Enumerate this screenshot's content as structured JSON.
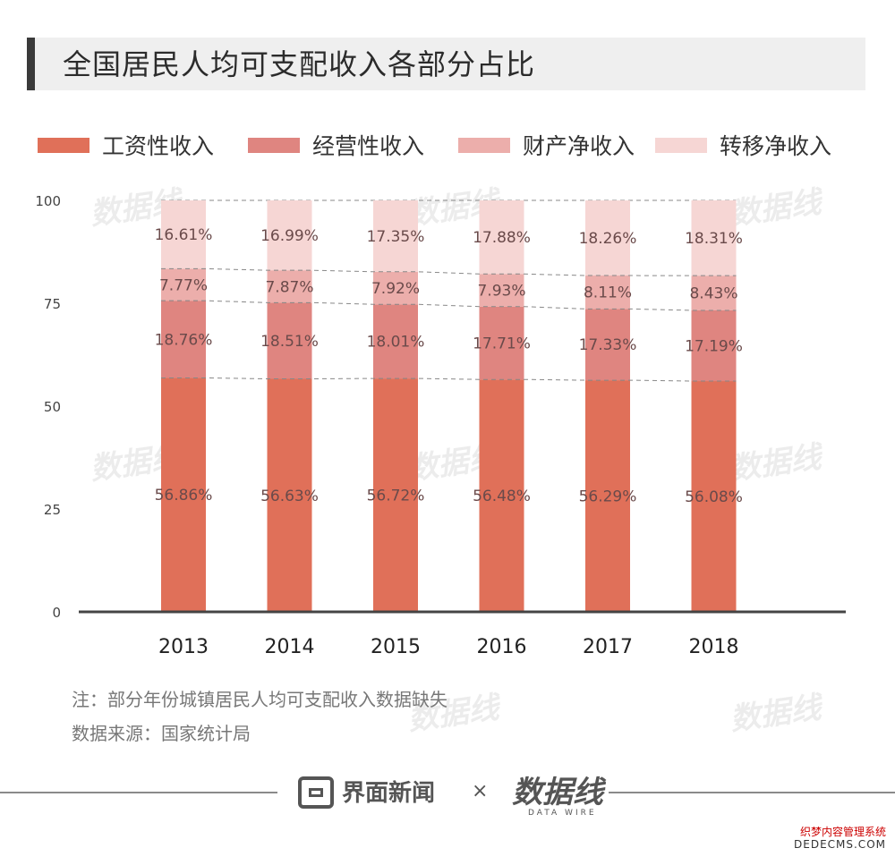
{
  "title": "全国居民人均可支配收入各部分占比",
  "legend": [
    {
      "label": "工资性收入",
      "color": "#e07059"
    },
    {
      "label": "经营性收入",
      "color": "#df8580"
    },
    {
      "label": "财产净收入",
      "color": "#ecaeab"
    },
    {
      "label": "转移净收入",
      "color": "#f6d6d4"
    }
  ],
  "chart_data": {
    "type": "bar",
    "stacked": true,
    "title": "全国居民人均可支配收入各部分占比",
    "categories": [
      "2013",
      "2014",
      "2015",
      "2016",
      "2017",
      "2018"
    ],
    "series": [
      {
        "name": "工资性收入",
        "values": [
          56.86,
          56.63,
          56.72,
          56.48,
          56.29,
          56.08
        ],
        "labels": [
          "56.86%",
          "56.63%",
          "56.72%",
          "56.48%",
          "56.29%",
          "56.08%"
        ]
      },
      {
        "name": "经营性收入",
        "values": [
          18.76,
          18.51,
          18.01,
          17.71,
          17.33,
          17.19
        ],
        "labels": [
          "18.76%",
          "18.51%",
          "18.01%",
          "17.71%",
          "17.33%",
          "17.19%"
        ]
      },
      {
        "name": "财产净收入",
        "values": [
          7.77,
          7.87,
          7.92,
          7.93,
          8.11,
          8.43
        ],
        "labels": [
          "7.77%",
          "7.87%",
          "7.92%",
          "7.93%",
          "8.11%",
          "8.43%"
        ]
      },
      {
        "name": "转移净收入",
        "values": [
          16.61,
          16.99,
          17.35,
          17.88,
          18.26,
          18.31
        ],
        "labels": [
          "16.61%",
          "16.99%",
          "17.35%",
          "17.88%",
          "18.26%",
          "18.31%"
        ]
      }
    ],
    "yticks": [
      "0",
      "25",
      "50",
      "75",
      "100"
    ],
    "ylim": [
      0,
      100
    ],
    "legend_position": "top",
    "xlabel": "",
    "ylabel": ""
  },
  "notes": {
    "note": "注：部分年份城镇居民人均可支配收入数据缺失",
    "source": "数据来源：国家统计局"
  },
  "footer": {
    "brand": "界面新闻",
    "separator": "×",
    "partner": "数据线",
    "partner_sub": "DATA WIRE"
  },
  "corner": {
    "line1": "织梦内容管理系统",
    "line2": "DEDECMS.COM"
  }
}
